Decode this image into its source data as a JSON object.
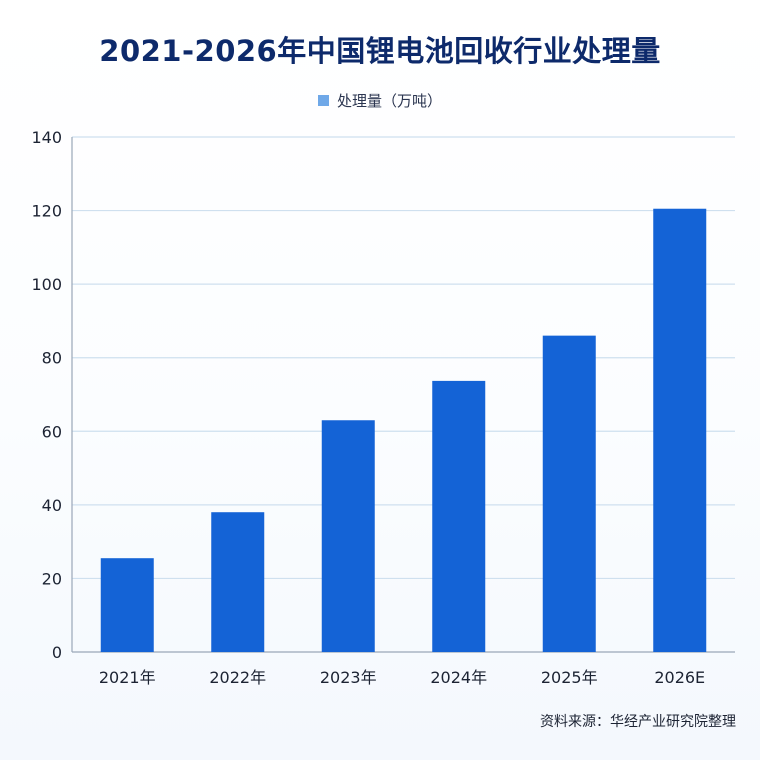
{
  "chart_data": {
    "type": "bar",
    "title": "2021-2026年中国锂电池回收行业处理量",
    "categories": [
      "2021年",
      "2022年",
      "2023年",
      "2024年",
      "2025年",
      "2026E"
    ],
    "series": [
      {
        "name": "处理量（万吨）",
        "values": [
          25.5,
          38,
          63,
          73.7,
          86,
          120.5
        ]
      }
    ],
    "ylim": [
      0,
      140
    ],
    "yticks": [
      0,
      20,
      40,
      60,
      80,
      100,
      120,
      140
    ],
    "grid": true,
    "legend_position": "top-center",
    "colors": {
      "bar": "#1463d6",
      "legend": "#6fa8e8",
      "grid": "#cfe0ef",
      "axis": "#9aa7b8"
    }
  },
  "source": "资料来源：华经产业研究院整理"
}
